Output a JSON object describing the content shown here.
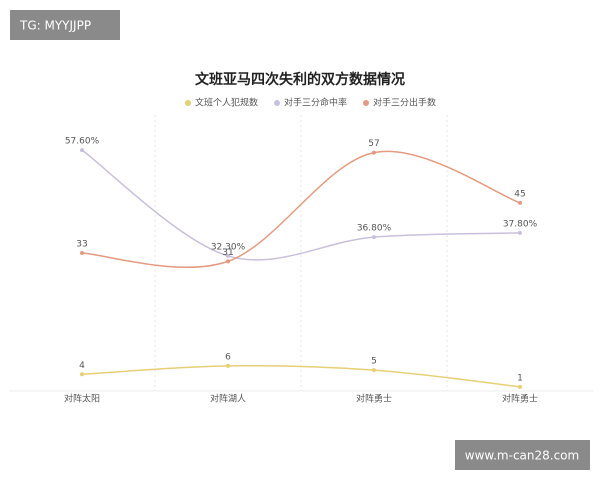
{
  "watermarks": [
    "TG: MYYJJPP",
    "www.m-can28.com"
  ],
  "chart_data": {
    "type": "line",
    "title": "文班亚马四次失利的双方数据情况",
    "categories": [
      "对阵太阳",
      "对阵湖人",
      "对阵勇士",
      "对阵勇士"
    ],
    "series": [
      {
        "name": "文班个人犯规数",
        "color": "#e6cf74",
        "values": [
          4,
          6,
          5,
          1
        ]
      },
      {
        "name": "对手三分命中率",
        "color": "#c8c0dc",
        "values": [
          57.6,
          32.3,
          36.8,
          37.8
        ],
        "value_labels": [
          "57.60%",
          "32.30%",
          "36.80%",
          "37.80%"
        ]
      },
      {
        "name": "对手三分出手数",
        "color": "#e39a80",
        "values": [
          33,
          31,
          57,
          45
        ]
      }
    ],
    "ylim": [
      0,
      66
    ],
    "grid": true,
    "legend": "top"
  }
}
